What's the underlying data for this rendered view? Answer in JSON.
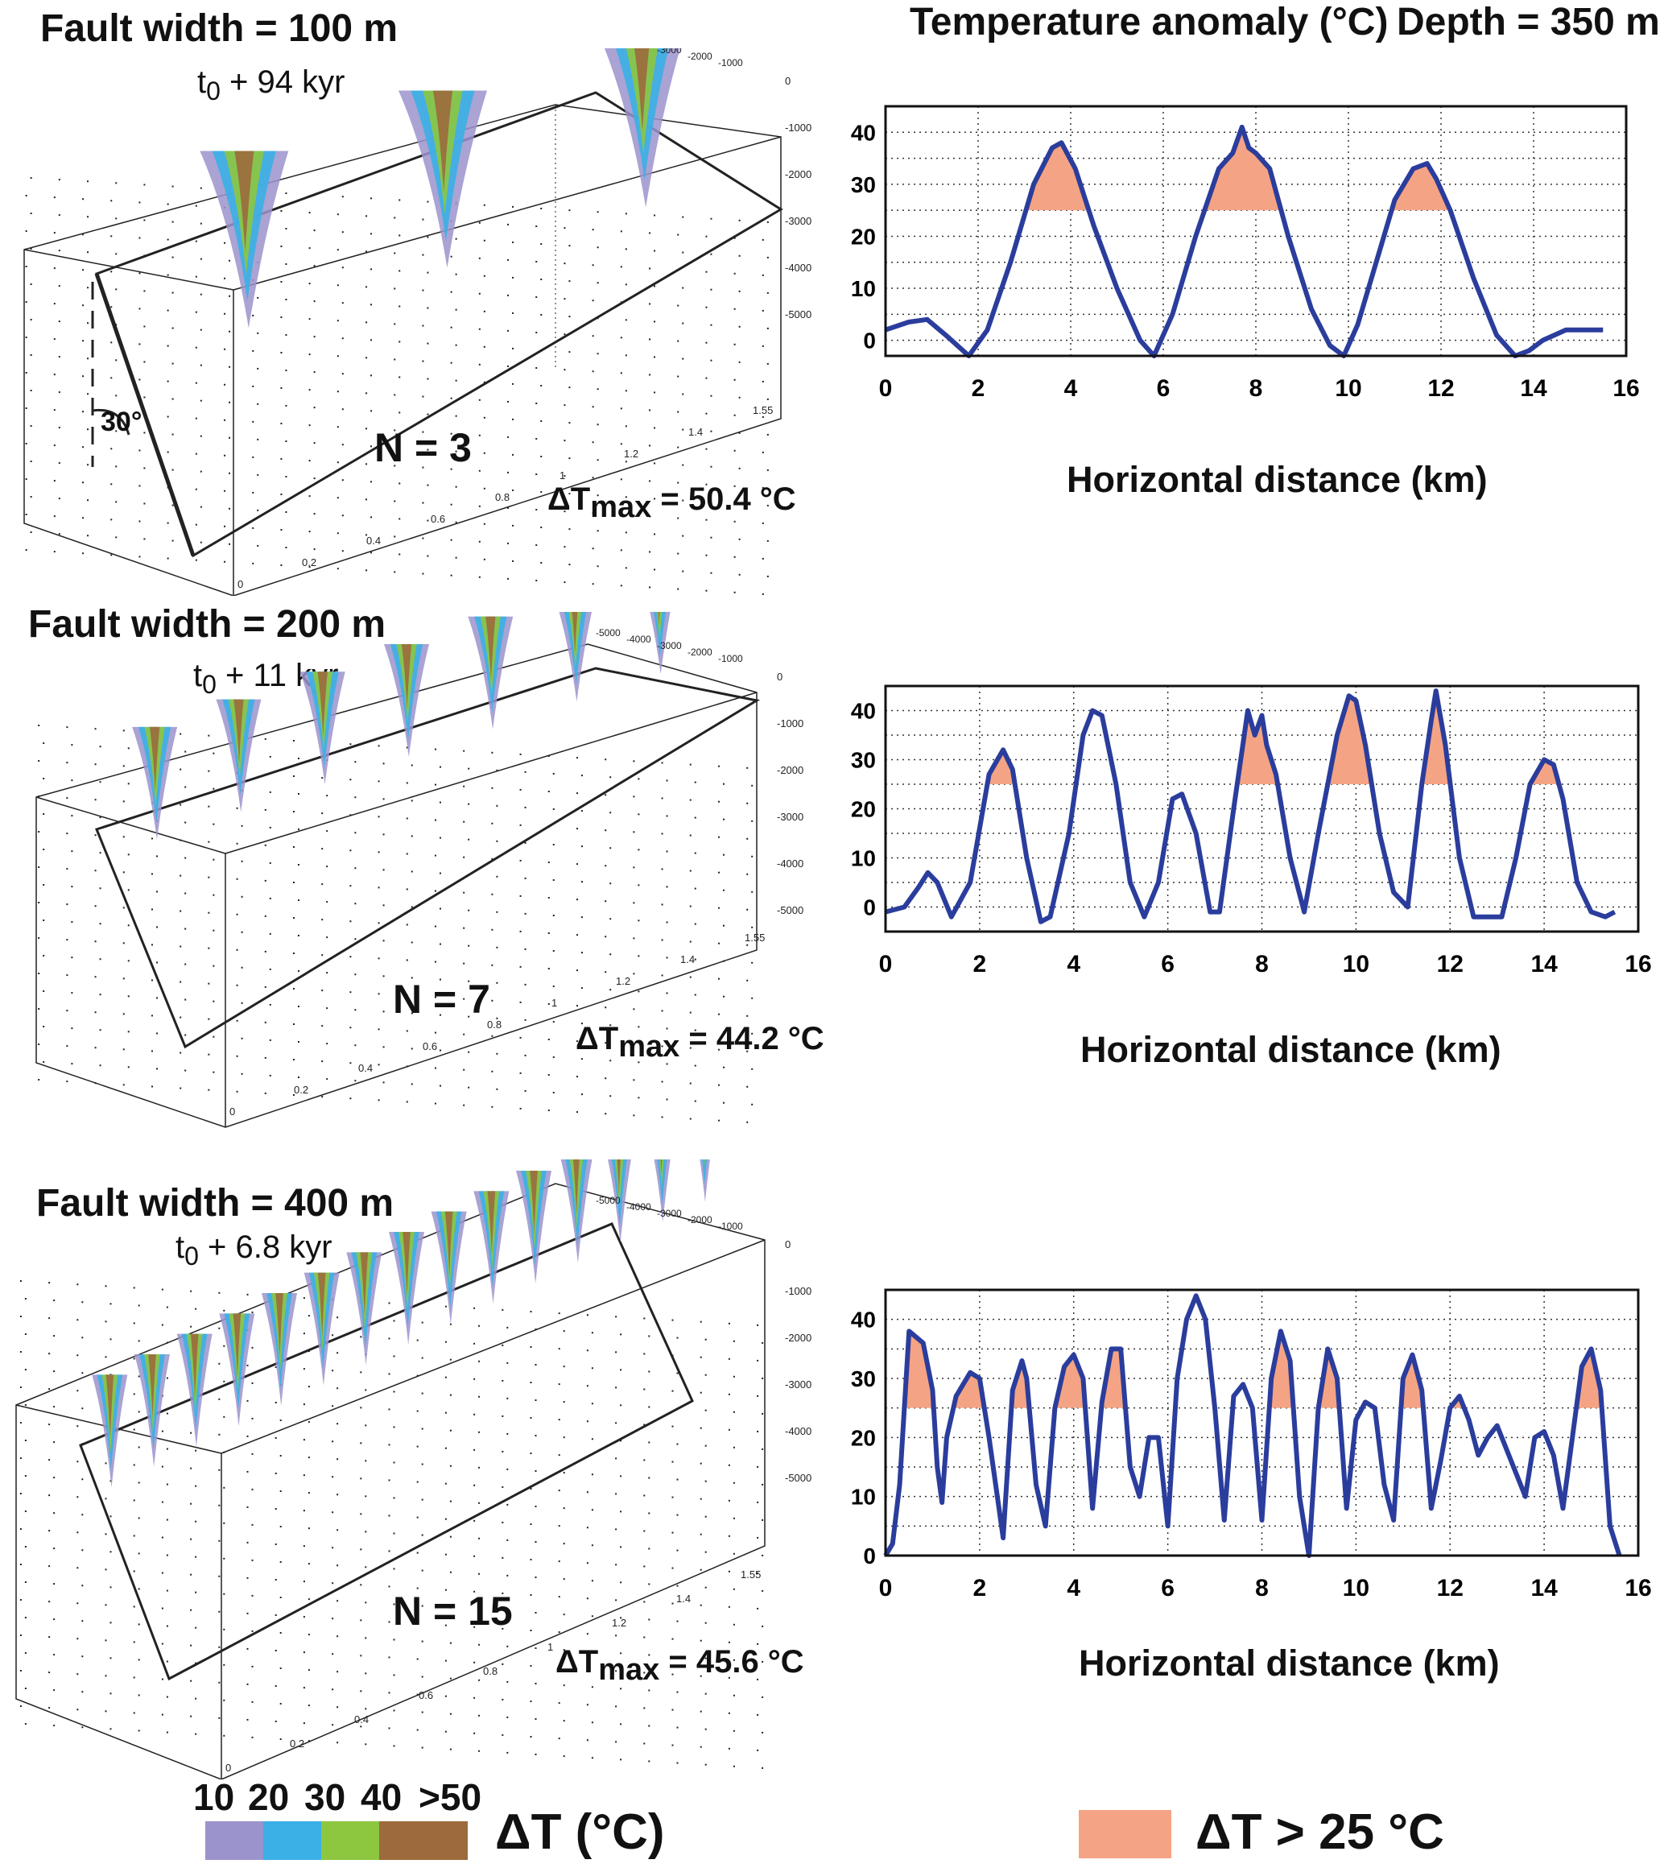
{
  "header": {
    "anomaly_title": "Temperature anomaly (°C)",
    "depth_title": "Depth = 350 m"
  },
  "panels": [
    {
      "fault_width": "Fault width = 100 m",
      "time_prefix": "t",
      "time_sub": "0",
      "time_rest": " + 94 kyr",
      "n_label": "N = 3",
      "dtmax_prefix": "ΔT",
      "dtmax_sub": "max",
      "dtmax_rest": " = 50.4 °C",
      "angle_label": "30°",
      "plumes": 3
    },
    {
      "fault_width": "Fault width = 200 m",
      "time_prefix": "t",
      "time_sub": "0",
      "time_rest": " + 11 kyr",
      "n_label": "N = 7",
      "dtmax_prefix": "ΔT",
      "dtmax_sub": "max",
      "dtmax_rest": " = 44.2 °C",
      "plumes": 7
    },
    {
      "fault_width": "Fault width = 400 m",
      "time_prefix": "t",
      "time_sub": "0",
      "time_rest": " + 6.8 kyr",
      "n_label": "N = 15",
      "dtmax_prefix": "ΔT",
      "dtmax_sub": "max",
      "dtmax_rest": " = 45.6 °C",
      "plumes": 15
    }
  ],
  "box_axes": {
    "depth_ticks": [
      "-5000",
      "-4000",
      "-3000",
      "-2000",
      "-1000",
      "0",
      "-1000",
      "-2000",
      "-3000",
      "-4000",
      "-5000"
    ],
    "front_ticks": [
      "0",
      "0.2",
      "0.4",
      "0.6",
      "0.8",
      "1",
      "1.2",
      "1.4",
      "1.55"
    ]
  },
  "colorbar": {
    "labels": [
      "10",
      "20",
      "30",
      "40",
      ">50"
    ],
    "colors": [
      "#9b93cc",
      "#3ab0e6",
      "#8dc63f",
      "#9c6a3c"
    ],
    "title": "ΔT (°C)"
  },
  "threshold_legend": {
    "label": "ΔT > 25 °C",
    "color": "#f4a484"
  },
  "chart_data": [
    {
      "type": "line",
      "xlabel": "Horizontal distance  (km)",
      "ylabel": "",
      "xlim": [
        0,
        16
      ],
      "ylim": [
        -3,
        45
      ],
      "xticks": [
        0,
        2,
        4,
        6,
        8,
        10,
        12,
        14,
        16
      ],
      "yticks": [
        0,
        10,
        20,
        30,
        40
      ],
      "threshold": 25,
      "series": [
        {
          "x": [
            0,
            0.5,
            0.9,
            1.3,
            1.8,
            2.2,
            2.7,
            3.2,
            3.6,
            3.8,
            4.1,
            4.5,
            5.0,
            5.5,
            5.8,
            6.2,
            6.7,
            7.2,
            7.5,
            7.7,
            7.85,
            8.0,
            8.3,
            8.7,
            9.2,
            9.6,
            9.9,
            10.2,
            10.6,
            11.0,
            11.4,
            11.7,
            11.9,
            12.2,
            12.7,
            13.2,
            13.6,
            13.9,
            14.2,
            14.7,
            15.1,
            15.5
          ],
          "y": [
            2,
            3.5,
            4,
            1,
            -3,
            2,
            15,
            30,
            37,
            38,
            33,
            22,
            10,
            0,
            -3,
            5,
            20,
            33,
            36,
            41,
            37,
            36,
            33,
            20,
            6,
            -1,
            -3,
            3,
            15,
            27,
            33,
            34,
            31,
            25,
            12,
            1,
            -3,
            -2,
            0,
            2,
            2,
            2
          ]
        }
      ]
    },
    {
      "type": "line",
      "xlabel": "Horizontal distance  (km)",
      "ylabel": "",
      "xlim": [
        0,
        16
      ],
      "ylim": [
        -5,
        45
      ],
      "xticks": [
        0,
        2,
        4,
        6,
        8,
        10,
        12,
        14,
        16
      ],
      "yticks": [
        0,
        10,
        20,
        30,
        40
      ],
      "threshold": 25,
      "series": [
        {
          "x": [
            0,
            0.4,
            0.7,
            0.9,
            1.1,
            1.4,
            1.8,
            2.2,
            2.5,
            2.7,
            3.0,
            3.3,
            3.5,
            3.9,
            4.2,
            4.4,
            4.6,
            4.9,
            5.2,
            5.5,
            5.8,
            6.1,
            6.3,
            6.6,
            6.9,
            7.1,
            7.4,
            7.7,
            7.85,
            8.0,
            8.1,
            8.3,
            8.6,
            8.9,
            9.2,
            9.6,
            9.85,
            10.0,
            10.2,
            10.5,
            10.8,
            11.1,
            11.4,
            11.6,
            11.7,
            11.9,
            12.2,
            12.5,
            12.8,
            13.1,
            13.4,
            13.7,
            14.0,
            14.2,
            14.4,
            14.7,
            15.0,
            15.3,
            15.5
          ],
          "y": [
            -1,
            0,
            4,
            7,
            5,
            -2,
            5,
            27,
            32,
            28,
            10,
            -3,
            -2,
            15,
            35,
            40,
            39,
            25,
            5,
            -2,
            5,
            22,
            23,
            15,
            -1,
            -1,
            20,
            40,
            35,
            39,
            33,
            27,
            10,
            -1,
            15,
            35,
            43,
            42,
            33,
            15,
            3,
            0,
            25,
            38,
            44,
            33,
            10,
            -2,
            -2,
            -2,
            10,
            25,
            30,
            29,
            22,
            5,
            -1,
            -2,
            -1
          ]
        }
      ]
    },
    {
      "type": "line",
      "xlabel": "Horizontal distance  (km)",
      "ylabel": "",
      "xlim": [
        0,
        16
      ],
      "ylim": [
        0,
        45
      ],
      "xticks": [
        0,
        2,
        4,
        6,
        8,
        10,
        12,
        14,
        16
      ],
      "yticks": [
        0,
        10,
        20,
        30,
        40
      ],
      "threshold": 25,
      "series": [
        {
          "x": [
            0,
            0.15,
            0.3,
            0.5,
            0.8,
            1.0,
            1.1,
            1.2,
            1.3,
            1.5,
            1.8,
            2.0,
            2.2,
            2.5,
            2.7,
            2.9,
            3.0,
            3.2,
            3.4,
            3.6,
            3.8,
            4.0,
            4.2,
            4.4,
            4.6,
            4.8,
            5.0,
            5.2,
            5.4,
            5.6,
            5.8,
            6.0,
            6.2,
            6.4,
            6.6,
            6.8,
            7.0,
            7.2,
            7.4,
            7.6,
            7.8,
            8.0,
            8.2,
            8.4,
            8.6,
            8.8,
            9.0,
            9.2,
            9.4,
            9.6,
            9.8,
            10.0,
            10.2,
            10.4,
            10.6,
            10.8,
            11.0,
            11.2,
            11.4,
            11.6,
            11.8,
            12.0,
            12.2,
            12.4,
            12.6,
            12.8,
            13.0,
            13.2,
            13.4,
            13.6,
            13.8,
            14.0,
            14.2,
            14.4,
            14.6,
            14.8,
            15.0,
            15.2,
            15.4,
            15.6
          ],
          "y": [
            0,
            2,
            12,
            38,
            36,
            28,
            15,
            9,
            20,
            27,
            31,
            30,
            20,
            3,
            28,
            33,
            30,
            12,
            5,
            25,
            32,
            34,
            30,
            8,
            26,
            35,
            35,
            15,
            10,
            20,
            20,
            5,
            30,
            40,
            44,
            40,
            25,
            6,
            27,
            29,
            25,
            6,
            30,
            38,
            33,
            10,
            0,
            25,
            35,
            30,
            8,
            23,
            26,
            25,
            12,
            6,
            30,
            34,
            28,
            8,
            16,
            25,
            27,
            23,
            17,
            20,
            22,
            18,
            14,
            10,
            20,
            21,
            17,
            8,
            20,
            32,
            35,
            28,
            5,
            0
          ]
        }
      ]
    }
  ]
}
